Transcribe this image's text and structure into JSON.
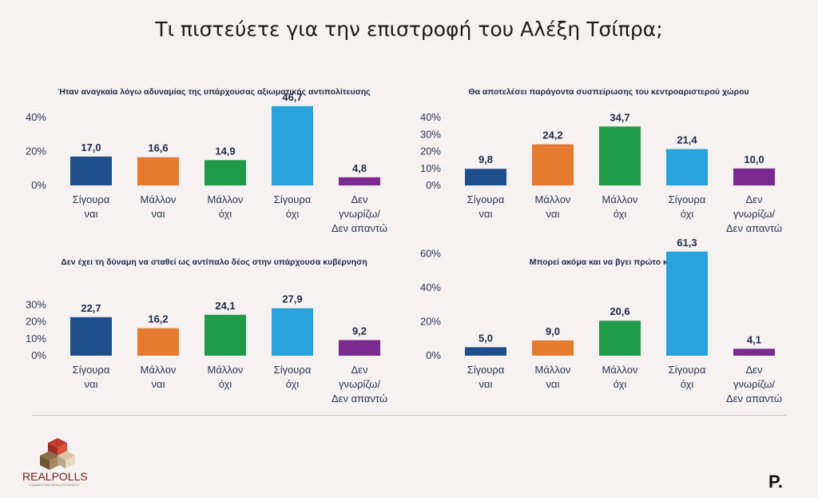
{
  "title": "Τι πιστεύετε για την επιστροφή του Αλέξη Τσίπρα;",
  "colors": {
    "sigoura_nai": "#1f4e8c",
    "mallon_nai": "#e67a2e",
    "mallon_ochi": "#1e9a4a",
    "sigoura_ochi": "#2aa3dc",
    "den_gnorizo": "#7b2a90",
    "axis_text": "#2c3550",
    "value_text": "#1f2a44"
  },
  "logos": {
    "realpolls": "REALPOLLS",
    "realpolls_tagline": "CONNECTING RESULTS INSIGHT",
    "protagon": "P."
  },
  "chart_data": [
    {
      "type": "bar",
      "title": "Ήταν αναγκαία λόγω αδυναμίας της υπάρχουσας αξιωματικής αντιπολίτευσης",
      "categories": [
        [
          "Σίγουρα",
          "ναι"
        ],
        [
          "Μάλλον",
          "ναι"
        ],
        [
          "Μάλλον",
          "όχι"
        ],
        [
          "Σίγουρα",
          "όχι"
        ],
        [
          "Δεν",
          "γνωρίζω/",
          "Δεν απαντώ"
        ]
      ],
      "values": [
        17.0,
        16.6,
        14.9,
        46.7,
        4.8
      ],
      "labels": [
        "17,0",
        "16,6",
        "14,9",
        "46,7",
        "4,8"
      ],
      "ylim": [
        0,
        40
      ],
      "yticks": [
        "0%",
        "20%",
        "40%"
      ],
      "ytick_values": [
        0,
        20,
        40
      ]
    },
    {
      "type": "bar",
      "title": "Θα αποτελέσει παράγοντα συσπείρωσης του κεντροαριστερού χώρου",
      "categories": [
        [
          "Σίγουρα",
          "ναι"
        ],
        [
          "Μάλλον",
          "ναι"
        ],
        [
          "Μάλλον",
          "όχι"
        ],
        [
          "Σίγουρα",
          "όχι"
        ],
        [
          "Δεν",
          "γνωρίζω/",
          "Δεν απαντώ"
        ]
      ],
      "values": [
        9.8,
        24.2,
        34.7,
        21.4,
        10.0
      ],
      "labels": [
        "9,8",
        "24,2",
        "34,7",
        "21,4",
        "10,0"
      ],
      "ylim": [
        0,
        40
      ],
      "yticks": [
        "0%",
        "10%",
        "20%",
        "30%",
        "40%"
      ],
      "ytick_values": [
        0,
        10,
        20,
        30,
        40
      ]
    },
    {
      "type": "bar",
      "title": "Δεν έχει τη δύναμη να σταθεί ως αντίπαλο δέος στην υπάρχουσα κυβέρνηση",
      "categories": [
        [
          "Σίγουρα",
          "ναι"
        ],
        [
          "Μάλλον",
          "ναι"
        ],
        [
          "Μάλλον",
          "όχι"
        ],
        [
          "Σίγουρα",
          "όχι"
        ],
        [
          "Δεν",
          "γνωρίζω/",
          "Δεν απαντώ"
        ]
      ],
      "values": [
        22.7,
        16.2,
        24.1,
        27.9,
        9.2
      ],
      "labels": [
        "22,7",
        "16,2",
        "24,1",
        "27,9",
        "9,2"
      ],
      "ylim": [
        0,
        30
      ],
      "yticks": [
        "0%",
        "10%",
        "20%",
        "30%"
      ],
      "ytick_values": [
        0,
        10,
        20,
        30
      ]
    },
    {
      "type": "bar",
      "title": "Μπορεί ακόμα και να βγει πρώτο κόμμα",
      "categories": [
        [
          "Σίγουρα",
          "ναι"
        ],
        [
          "Μάλλον",
          "ναι"
        ],
        [
          "Μάλλον",
          "όχι"
        ],
        [
          "Σίγουρα",
          "όχι"
        ],
        [
          "Δεν",
          "γνωρίζω/",
          "Δεν απαντώ"
        ]
      ],
      "values": [
        5.0,
        9.0,
        20.6,
        61.3,
        4.1
      ],
      "labels": [
        "5,0",
        "9,0",
        "20,6",
        "61,3",
        "4,1"
      ],
      "ylim": [
        0,
        60
      ],
      "yticks": [
        "0%",
        "20%",
        "40%",
        "60%"
      ],
      "ytick_values": [
        0,
        20,
        40,
        60
      ]
    }
  ]
}
